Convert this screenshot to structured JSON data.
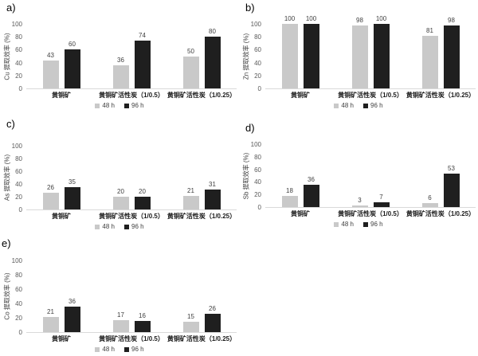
{
  "figure": {
    "background": "#ffffff",
    "series_colors": {
      "h48": "#c9c9c9",
      "h96": "#1f1f1f"
    },
    "axis_line_color": "#d9d9d9"
  },
  "chart_data": [
    {
      "type": "bar",
      "panel_label": "a)",
      "ylabel": "Cu 提取效率 (%)",
      "xlabel": "",
      "ylim": [
        0,
        100
      ],
      "yticks": [
        100,
        80,
        60,
        40,
        20,
        0
      ],
      "grid": false,
      "legend_position": "bottom",
      "categories": [
        "黄铜矿",
        "黄铜矿活性炭（1/0.5）",
        "黄铜矿活性炭（1/0.25）"
      ],
      "series": [
        {
          "name": "48 h",
          "color": "#c9c9c9",
          "values": [
            43,
            36,
            50
          ]
        },
        {
          "name": "96 h",
          "color": "#1f1f1f",
          "values": [
            60,
            74,
            80
          ]
        }
      ]
    },
    {
      "type": "bar",
      "panel_label": "b)",
      "ylabel": "Zn 提取效率 (%)",
      "xlabel": "",
      "ylim": [
        0,
        100
      ],
      "yticks": [
        100,
        80,
        60,
        40,
        20,
        0
      ],
      "grid": false,
      "legend_position": "bottom",
      "categories": [
        "黄铜矿",
        "黄铜矿活性炭（1/0.5）",
        "黄铜矿活性炭（1/0.25）"
      ],
      "series": [
        {
          "name": "48 h",
          "color": "#c9c9c9",
          "values": [
            100,
            98,
            81
          ]
        },
        {
          "name": "96 h",
          "color": "#1f1f1f",
          "values": [
            100,
            100,
            98
          ]
        }
      ]
    },
    {
      "type": "bar",
      "panel_label": "c)",
      "ylabel": "As 提取效率 (%)",
      "xlabel": "",
      "ylim": [
        0,
        100
      ],
      "yticks": [
        100,
        80,
        60,
        40,
        20,
        0
      ],
      "grid": false,
      "legend_position": "bottom",
      "categories": [
        "黄铜矿",
        "黄铜矿活性炭（1/0.5）",
        "黄铜矿活性炭（1/0.25）"
      ],
      "series": [
        {
          "name": "48 h",
          "color": "#c9c9c9",
          "values": [
            26,
            20,
            21
          ]
        },
        {
          "name": "96 h",
          "color": "#1f1f1f",
          "values": [
            35,
            20,
            31
          ]
        }
      ]
    },
    {
      "type": "bar",
      "panel_label": "d)",
      "ylabel": "Sb 提取效率 (%)",
      "xlabel": "",
      "ylim": [
        0,
        100
      ],
      "yticks": [
        100,
        80,
        60,
        40,
        20,
        0
      ],
      "grid": false,
      "legend_position": "bottom",
      "categories": [
        "黄铜矿",
        "黄铜矿活性炭（1/0.5）",
        "黄铜矿活性炭（1/0.25）"
      ],
      "series": [
        {
          "name": "48 h",
          "color": "#c9c9c9",
          "values": [
            18,
            3,
            6
          ]
        },
        {
          "name": "96 h",
          "color": "#1f1f1f",
          "values": [
            36,
            7,
            53
          ]
        }
      ]
    },
    {
      "type": "bar",
      "panel_label": "e)",
      "ylabel": "Co 提取效率 (%)",
      "xlabel": "",
      "ylim": [
        0,
        100
      ],
      "yticks": [
        100,
        80,
        60,
        40,
        20,
        0
      ],
      "grid": false,
      "legend_position": "bottom",
      "categories": [
        "黄铜矿",
        "黄铜矿活性炭（1/0.5）",
        "黄铜矿活性炭（1/0.25）"
      ],
      "series": [
        {
          "name": "48 h",
          "color": "#c9c9c9",
          "values": [
            21,
            17,
            15
          ]
        },
        {
          "name": "96 h",
          "color": "#1f1f1f",
          "values": [
            36,
            16,
            26
          ]
        }
      ]
    }
  ]
}
